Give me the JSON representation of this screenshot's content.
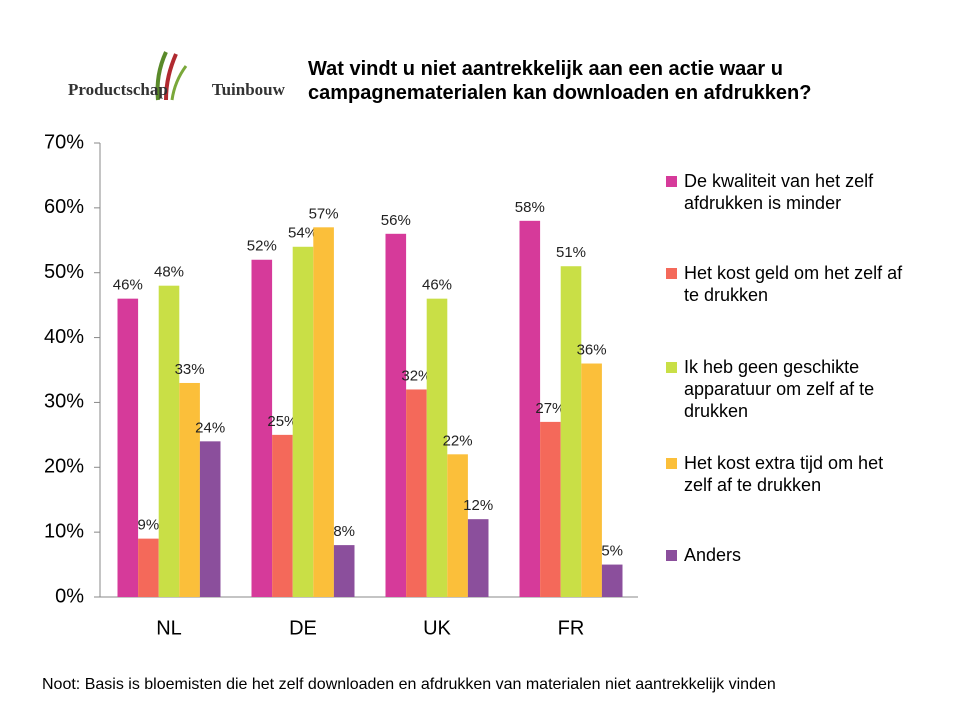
{
  "logo": {
    "left": "Productschap",
    "right": "Tuinbouw"
  },
  "chart_data": {
    "type": "bar",
    "title": "Wat vindt u niet aantrekkelijk aan een actie waar u campagnematerialen kan downloaden en afdrukken?",
    "categories": [
      "NL",
      "DE",
      "UK",
      "FR"
    ],
    "series": [
      {
        "name": "De kwaliteit van het zelf afdrukken is minder",
        "color": "#d63a9a",
        "values": [
          46,
          52,
          56,
          58
        ],
        "value_labels": [
          "46%",
          "52%",
          "56%",
          "58%"
        ]
      },
      {
        "name": "Het kost geld om het zelf af te drukken",
        "color": "#f4695a",
        "values": [
          9,
          25,
          32,
          27
        ],
        "value_labels": [
          "9%",
          "25%",
          "32%",
          "27%"
        ]
      },
      {
        "name": "Ik heb geen geschikte apparatuur om zelf af te drukken",
        "color": "#c9df46",
        "values": [
          48,
          54,
          46,
          51
        ],
        "value_labels": [
          "48%",
          "54%",
          "46%",
          "51%"
        ]
      },
      {
        "name": "Het kost extra tijd om het zelf af te drukken",
        "color": "#fbbf3a",
        "values": [
          33,
          57,
          22,
          36
        ],
        "value_labels": [
          "33%",
          "57%",
          "22%",
          "36%"
        ]
      },
      {
        "name": "Anders",
        "color": "#8b4f9c",
        "values": [
          24,
          8,
          12,
          5
        ],
        "value_labels": [
          "24%",
          "8%",
          "12%",
          "5%"
        ]
      }
    ],
    "ylim": [
      0,
      70
    ],
    "yticks": [
      {
        "value": 0,
        "label": "0%"
      },
      {
        "value": 10,
        "label": "10%"
      },
      {
        "value": 20,
        "label": "20%"
      },
      {
        "value": 30,
        "label": "30%"
      },
      {
        "value": 40,
        "label": "40%"
      },
      {
        "value": 50,
        "label": "50%"
      },
      {
        "value": 60,
        "label": "60%"
      },
      {
        "value": 70,
        "label": "70%"
      }
    ],
    "legend": "right",
    "note": "Noot: Basis is bloemisten die het zelf downloaden en afdrukken van materialen niet aantrekkelijk vinden"
  }
}
